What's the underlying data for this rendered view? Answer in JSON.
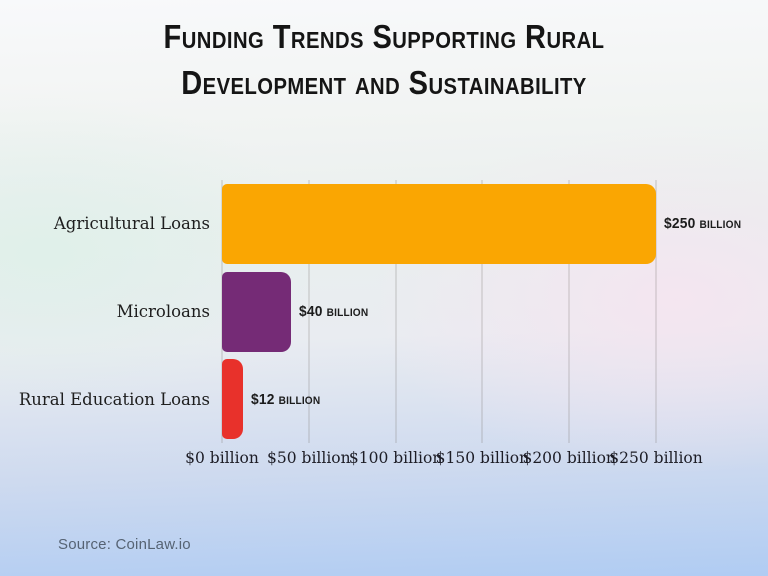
{
  "title": {
    "line1": "Funding Trends Supporting Rural",
    "line2": "Development and Sustainability",
    "full": "Funding Trends Supporting Rural Development and Sustainability"
  },
  "source": {
    "label": "Source: CoinLaw.io"
  },
  "chart_data": {
    "type": "bar",
    "orientation": "horizontal",
    "title": "Funding Trends Supporting Rural Development and Sustainability",
    "categories": [
      "Agricultural Loans",
      "Microloans",
      "Rural Education Loans"
    ],
    "values": [
      250,
      40,
      12
    ],
    "value_labels": [
      "$250 billion",
      "$40 billion",
      "$12 billion"
    ],
    "bar_colors": [
      "#FAA602",
      "#752B76",
      "#E8312B"
    ],
    "x_ticks": [
      "$0 billion",
      "$50 billion",
      "$100 billion",
      "$150 billion",
      "$200 billion",
      "$250 billion"
    ],
    "x_tick_values": [
      0,
      50,
      100,
      150,
      200,
      250
    ],
    "xlim": [
      0,
      250
    ],
    "xlabel": "",
    "ylabel": "",
    "grid": true,
    "gridline_color": "#7d7870",
    "legend": false,
    "background": {
      "top": "#f8f9fb",
      "mid_left_mint": "#e2efeb",
      "mid_right_pink": "#f5ecf2",
      "bottom_blue": "#b0ccf3"
    },
    "title_color": "#151515",
    "label_color": "#1e1e1e"
  }
}
